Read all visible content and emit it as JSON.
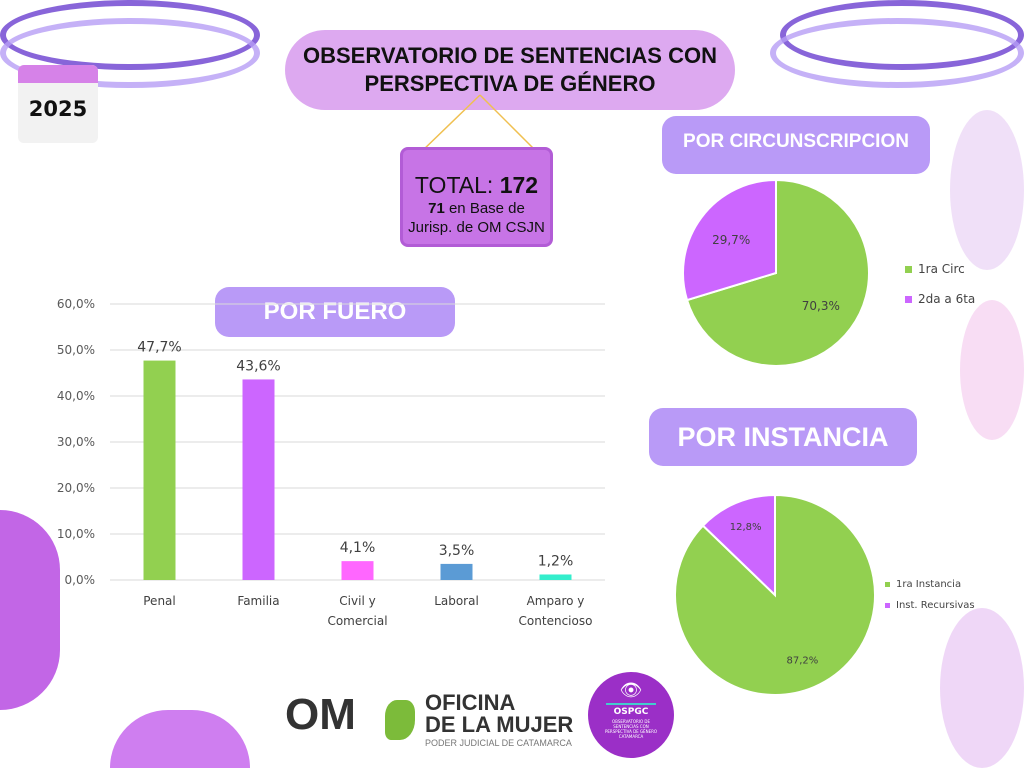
{
  "header": {
    "title_line1": "OBSERVATORIO DE SENTENCIAS CON",
    "title_line2": "PERSPECTIVA DE GÉNERO",
    "year": "2025"
  },
  "total": {
    "label": "TOTAL:",
    "value": "172",
    "base_count": "71",
    "base_text1": "en Base de",
    "base_text2": "Jurisp. de OM CSJN"
  },
  "banners": {
    "fuero": "POR FUERO",
    "circunscripcion": "POR CIRCUNSCRIPCION",
    "instancia": "POR INSTANCIA"
  },
  "footer": {
    "logo_om": "OM",
    "logo_line1": "OFICINA",
    "logo_line2": "DE LA MUJER",
    "logo_sub": "PODER JUDICIAL DE CATAMARCA",
    "ospgc": "OSPGC",
    "ospgc_sub": "OBSERVATORIO DE SENTENCIAS CON PERSPECTIVA DE GÉNERO CATAMARCA"
  },
  "colors": {
    "green": "#92d050",
    "purple": "#cc66ff",
    "pink": "#ff66ff",
    "blue": "#5b9bd5",
    "teal": "#33eecc",
    "banner": "#b99af7"
  },
  "chart_data": [
    {
      "type": "bar",
      "title": "POR FUERO",
      "categories": [
        [
          "Penal"
        ],
        [
          "Familia"
        ],
        [
          "Civil y",
          "Comercial"
        ],
        [
          "Laboral"
        ],
        [
          "Amparo y",
          "Contencioso"
        ]
      ],
      "values": [
        47.7,
        43.6,
        4.1,
        3.5,
        1.2
      ],
      "labels": [
        "47,7%",
        "43,6%",
        "4,1%",
        "3,5%",
        "1,2%"
      ],
      "bar_colors": [
        "#92d050",
        "#cc66ff",
        "#ff66ff",
        "#5b9bd5",
        "#33eecc"
      ],
      "ylim": [
        0,
        60
      ],
      "yticks": [
        "0,0%",
        "10,0%",
        "20,0%",
        "30,0%",
        "40,0%",
        "50,0%",
        "60,0%"
      ],
      "grid": true
    },
    {
      "type": "pie",
      "title": "POR CIRCUNSCRIPCION",
      "slices": [
        {
          "name": "1ra Circ",
          "value": 70.3,
          "label": "70,3%",
          "color": "#92d050"
        },
        {
          "name": "2da a 6ta",
          "value": 29.7,
          "label": "29,7%",
          "color": "#cc66ff"
        }
      ],
      "legend": "right"
    },
    {
      "type": "pie",
      "title": "POR INSTANCIA",
      "slices": [
        {
          "name": "1ra Instancia",
          "value": 87.2,
          "label": "87,2%",
          "color": "#92d050"
        },
        {
          "name": "Inst. Recursivas",
          "value": 12.8,
          "label": "12,8%",
          "color": "#cc66ff"
        }
      ],
      "legend": "right"
    }
  ]
}
